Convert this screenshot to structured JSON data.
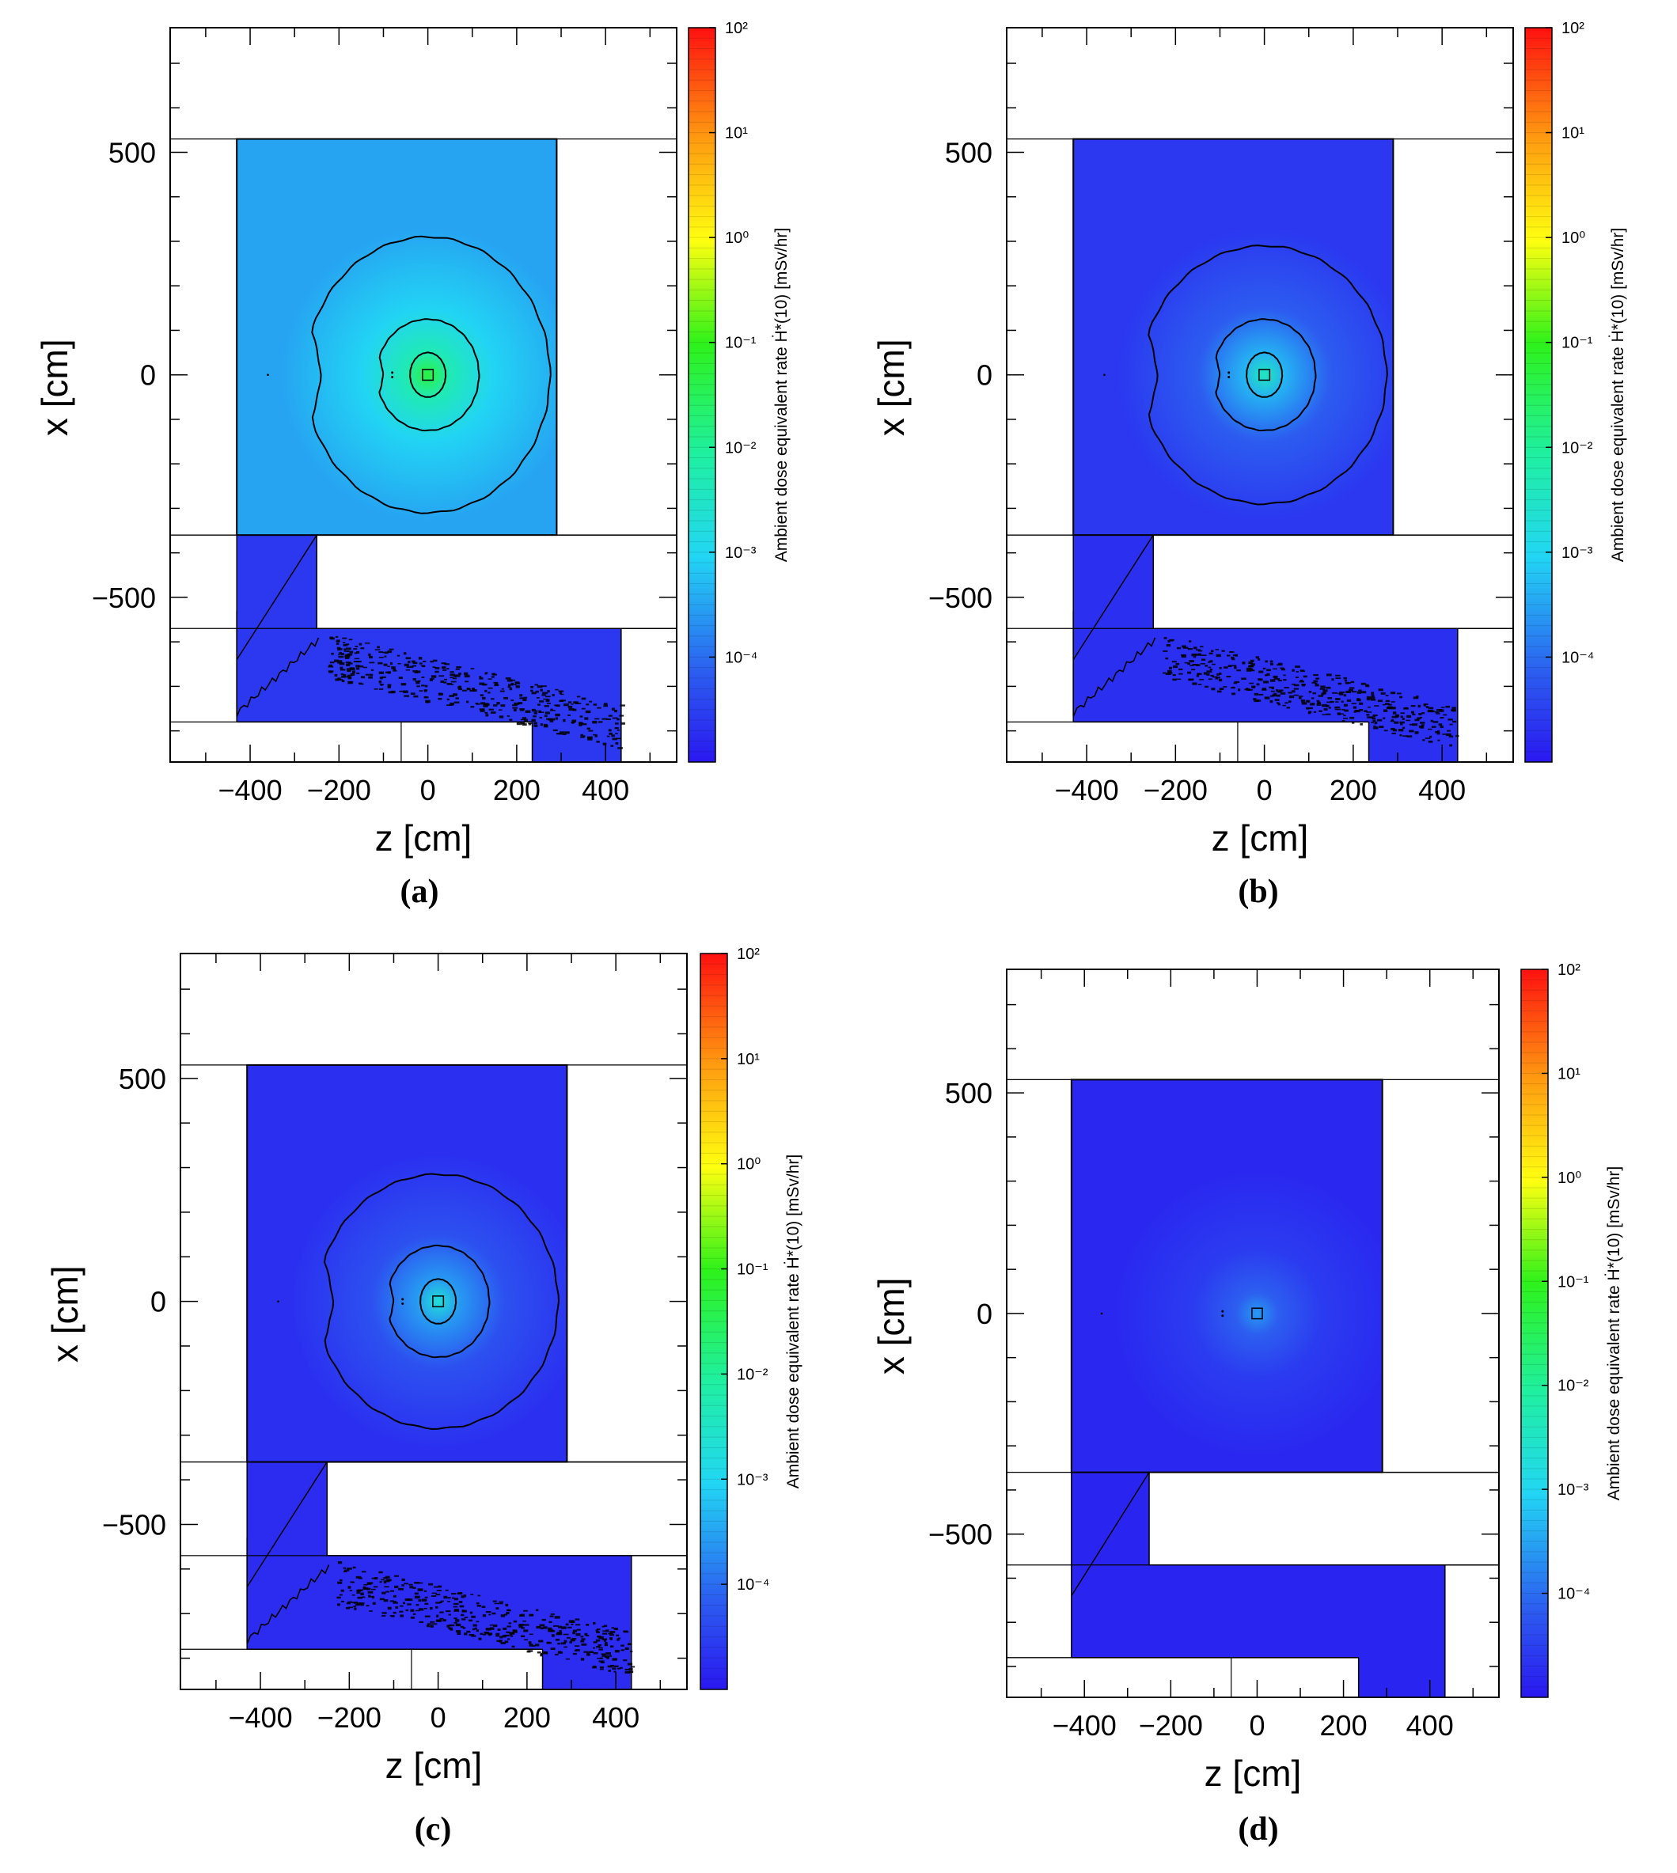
{
  "chart_data": [
    {
      "type": "heatmap",
      "caption": "(a)",
      "xlabel": "z [cm]",
      "ylabel": "x [cm]",
      "xlim": [
        -580,
        560
      ],
      "ylim": [
        -870,
        780
      ],
      "x_ticks": [
        -400,
        -200,
        0,
        200,
        400
      ],
      "x_tick_labels": [
        "−400",
        "−200",
        "0",
        "200",
        "400"
      ],
      "y_ticks": [
        -500,
        0,
        500
      ],
      "y_tick_labels": [
        "−500",
        "0",
        "500"
      ],
      "colorbar": {
        "label": "Ambient dose equivalent rate Ḣ*(10) [mSv/hr]",
        "scale": "log",
        "range_log10": [
          -5,
          2
        ],
        "tick_values": [
          -4,
          -3,
          -2,
          -1,
          0,
          1,
          2
        ],
        "tick_labels": [
          "10⁻⁴",
          "10⁻³",
          "10⁻²",
          "10⁻¹",
          "10⁰",
          "10¹",
          "10²"
        ]
      },
      "peak_log10": -1.3,
      "background_log10": -3.5,
      "lower_region_log10": -4.6,
      "contours": [
        {
          "rz": 40,
          "rx": 50
        },
        {
          "rz": 115,
          "rx": 125
        },
        {
          "rz": 275,
          "rx": 310
        }
      ]
    },
    {
      "type": "heatmap",
      "caption": "(b)",
      "xlabel": "z [cm]",
      "ylabel": "x [cm]",
      "xlim": [
        -580,
        560
      ],
      "ylim": [
        -870,
        780
      ],
      "x_ticks": [
        -400,
        -200,
        0,
        200,
        400
      ],
      "x_tick_labels": [
        "−400",
        "−200",
        "0",
        "200",
        "400"
      ],
      "y_ticks": [
        -500,
        0,
        500
      ],
      "y_tick_labels": [
        "−500",
        "0",
        "500"
      ],
      "colorbar": {
        "label": "Ambient dose equivalent rate Ḣ*(10) [mSv/hr]",
        "scale": "log",
        "range_log10": [
          -5,
          2
        ],
        "tick_values": [
          -4,
          -3,
          -2,
          -1,
          0,
          1,
          2
        ],
        "tick_labels": [
          "10⁻⁴",
          "10⁻³",
          "10⁻²",
          "10⁻¹",
          "10⁰",
          "10¹",
          "10²"
        ]
      },
      "peak_log10": -2.4,
      "background_log10": -4.6,
      "lower_region_log10": -4.7,
      "contours": [
        {
          "rz": 40,
          "rx": 50
        },
        {
          "rz": 115,
          "rx": 125
        },
        {
          "rz": 275,
          "rx": 290
        }
      ]
    },
    {
      "type": "heatmap",
      "caption": "(c)",
      "xlabel": "z [cm]",
      "ylabel": "x [cm]",
      "xlim": [
        -580,
        560
      ],
      "ylim": [
        -870,
        780
      ],
      "x_ticks": [
        -400,
        -200,
        0,
        200,
        400
      ],
      "x_tick_labels": [
        "−400",
        "−200",
        "0",
        "200",
        "400"
      ],
      "y_ticks": [
        -500,
        0,
        500
      ],
      "y_tick_labels": [
        "−500",
        "0",
        "500"
      ],
      "colorbar": {
        "label": "Ambient dose equivalent rate Ḣ*(10) [mSv/hr]",
        "scale": "log",
        "range_log10": [
          -5,
          2
        ],
        "tick_values": [
          -4,
          -3,
          -2,
          -1,
          0,
          1,
          2
        ],
        "tick_labels": [
          "10⁻⁴",
          "10⁻³",
          "10⁻²",
          "10⁻¹",
          "10⁰",
          "10¹",
          "10²"
        ]
      },
      "peak_log10": -2.7,
      "background_log10": -4.7,
      "lower_region_log10": -4.75,
      "contours": [
        {
          "rz": 40,
          "rx": 50
        },
        {
          "rz": 115,
          "rx": 125
        },
        {
          "rz": 270,
          "rx": 285
        }
      ]
    },
    {
      "type": "heatmap",
      "caption": "(d)",
      "xlabel": "z [cm]",
      "ylabel": "x [cm]",
      "xlim": [
        -580,
        560
      ],
      "ylim": [
        -870,
        780
      ],
      "x_ticks": [
        -400,
        -200,
        0,
        200,
        400
      ],
      "x_tick_labels": [
        "−400",
        "−200",
        "0",
        "200",
        "400"
      ],
      "y_ticks": [
        -500,
        0,
        500
      ],
      "y_tick_labels": [
        "−500",
        "0",
        "500"
      ],
      "colorbar": {
        "label": "Ambient dose equivalent rate Ḣ*(10) [mSv/hr]",
        "scale": "log",
        "range_log10": [
          -5,
          2
        ],
        "tick_values": [
          -4,
          -3,
          -2,
          -1,
          0,
          1,
          2
        ],
        "tick_labels": [
          "10⁻⁴",
          "10⁻³",
          "10⁻²",
          "10⁻¹",
          "10⁰",
          "10¹",
          "10²"
        ]
      },
      "peak_log10": -3.6,
      "background_log10": -4.8,
      "lower_region_log10": -4.85,
      "contours": []
    }
  ],
  "geometry_regions": {
    "upper_room": {
      "z": [
        -430,
        290
      ],
      "x": [
        -360,
        530
      ]
    },
    "lower_room": {
      "z": [
        -430,
        435
      ],
      "x": [
        -780,
        -570
      ]
    },
    "blocked_block": {
      "z": [
        -250,
        560
      ],
      "x": [
        -570,
        -360
      ]
    },
    "shield_cutout": {
      "z": [
        -580,
        235
      ],
      "x": [
        -870,
        -780
      ]
    },
    "wall_lines_x": [
      530,
      -360,
      -570,
      -780
    ],
    "divider_z": -60,
    "source_box": {
      "z": [
        -12,
        12
      ],
      "x": [
        -12,
        12
      ]
    }
  }
}
